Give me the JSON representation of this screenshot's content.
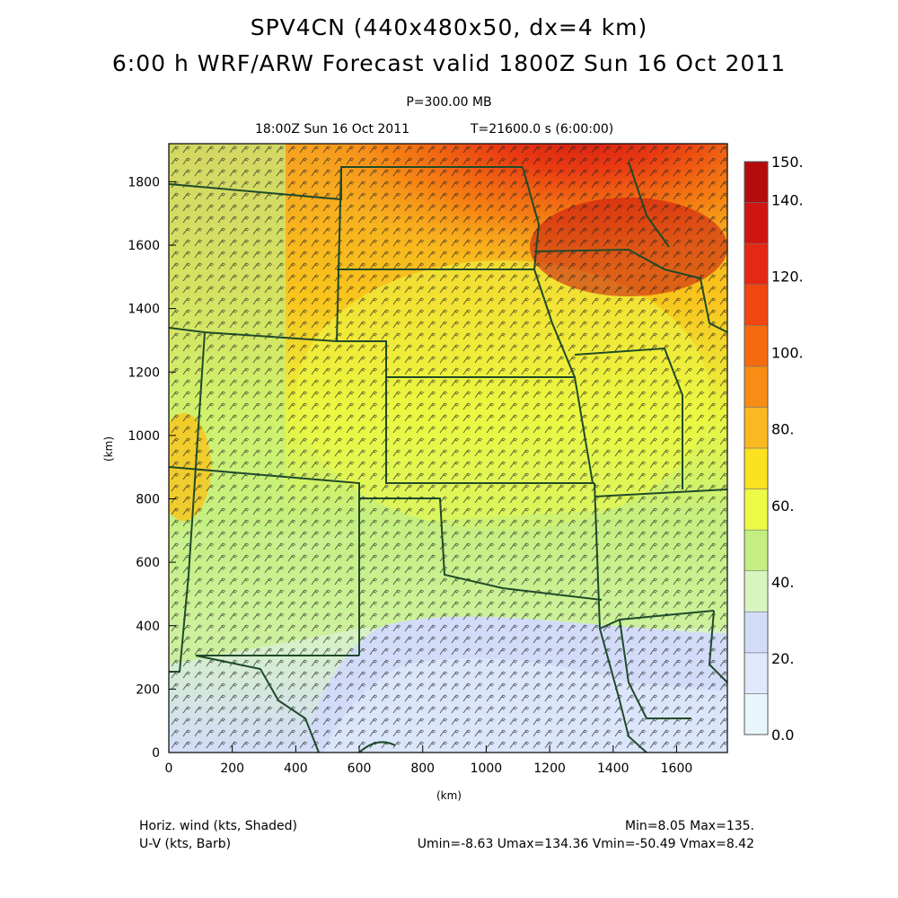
{
  "header": {
    "title_line1": "SPV4CN (440x480x50, dx=4 km)",
    "title_line2": "6:00 h WRF/ARW Forecast valid 1800Z Sun 16 Oct 2011",
    "level": "P=300.00 MB",
    "valid_time": "18:00Z Sun 16 Oct 2011",
    "sim_time": "T=21600.0 s (6:00:00)"
  },
  "axes": {
    "x_label": "(km)",
    "y_label": "(km)",
    "x_ticks": [
      "0",
      "200",
      "400",
      "600",
      "800",
      "1000",
      "1200",
      "1400",
      "1600"
    ],
    "y_ticks": [
      "0",
      "200",
      "400",
      "600",
      "800",
      "1000",
      "1200",
      "1400",
      "1600",
      "1800"
    ]
  },
  "colorbar": {
    "labels": [
      "0.0",
      "20.",
      "40.",
      "60.",
      "80.",
      "100.",
      "120.",
      "140.",
      "150."
    ],
    "colors": [
      "#e8f6fc",
      "#e0e8fb",
      "#d2dcf8",
      "#d7f5bf",
      "#c4ef80",
      "#ecfa46",
      "#fbe11e",
      "#fbb921",
      "#f88c14",
      "#f56a0c",
      "#f24510",
      "#e52813",
      "#cf1412",
      "#b40c0c"
    ]
  },
  "footer": {
    "left_line1": "Horiz. wind (kts, Shaded)",
    "left_line2": "U-V (kts, Barb)",
    "right_line1": "Min=8.05 Max=135.",
    "right_line2": "Umin=-8.63 Umax=134.36 Vmin=-50.49 Vmax=8.42"
  }
}
